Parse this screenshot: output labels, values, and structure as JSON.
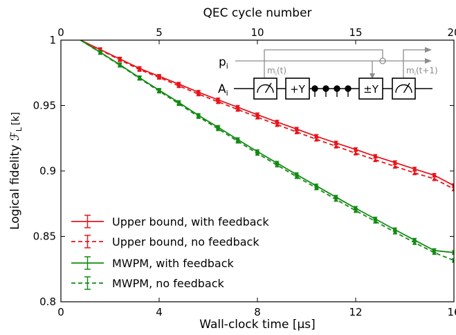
{
  "chart_data": {
    "type": "line",
    "xlabel": "Wall-clock time [μs]",
    "ylabel_text": "Logical fidelity",
    "ylabel_symbol": "ℱ",
    "ylabel_sub": "L",
    "ylabel_arg": "[k]",
    "top_xlabel": "QEC cycle number",
    "xlim": [
      0,
      16
    ],
    "ylim": [
      0.8,
      1.0
    ],
    "xticks": [
      0,
      4,
      8,
      12,
      16
    ],
    "yticks": [
      0.8,
      0.85,
      0.9,
      0.95,
      1.0
    ],
    "ytick_labels": [
      "0.8",
      "0.85",
      "0.9",
      "0.95",
      "1"
    ],
    "top_xlim": [
      0,
      20
    ],
    "top_xticks": [
      0,
      5,
      10,
      15,
      20
    ],
    "legend_position": "lower-left",
    "grid": false,
    "colors": {
      "red": "#e8141b",
      "green": "#138a13"
    },
    "x": [
      0.8,
      1.6,
      2.4,
      3.2,
      4.0,
      4.8,
      5.6,
      6.4,
      7.2,
      8.0,
      8.8,
      9.6,
      10.4,
      11.2,
      12.0,
      12.8,
      13.6,
      14.4,
      15.2,
      16.0
    ],
    "series": [
      {
        "name": "Upper bound, with feedback",
        "color": "#e8141b",
        "style": "solid",
        "marker": "dot",
        "values": [
          1.0,
          0.9928,
          0.9856,
          0.9784,
          0.9724,
          0.9664,
          0.9602,
          0.9544,
          0.9487,
          0.943,
          0.9374,
          0.932,
          0.9265,
          0.9214,
          0.9164,
          0.9112,
          0.9064,
          0.9015,
          0.8967,
          0.8888
        ]
      },
      {
        "name": "Upper bound, no feedback",
        "color": "#e8141b",
        "style": "dashed",
        "marker": "triangle",
        "values": [
          1.0,
          0.9924,
          0.985,
          0.9775,
          0.9715,
          0.9651,
          0.9588,
          0.9529,
          0.947,
          0.9411,
          0.9354,
          0.9298,
          0.9242,
          0.9189,
          0.9136,
          0.9085,
          0.9035,
          0.8985,
          0.894,
          0.8862
        ]
      },
      {
        "name": "MWPM, with feedback",
        "color": "#138a13",
        "style": "solid",
        "marker": "dot",
        "values": [
          1.0,
          0.9908,
          0.9812,
          0.9713,
          0.9617,
          0.9524,
          0.9425,
          0.9334,
          0.924,
          0.9148,
          0.906,
          0.8972,
          0.8886,
          0.88,
          0.8715,
          0.8633,
          0.8551,
          0.8471,
          0.8392,
          0.8376
        ]
      },
      {
        "name": "MWPM, no feedback",
        "color": "#138a13",
        "style": "dashed",
        "marker": "triangle",
        "values": [
          1.0,
          0.9905,
          0.9808,
          0.9708,
          0.961,
          0.9514,
          0.9415,
          0.9322,
          0.9227,
          0.9134,
          0.9045,
          0.8956,
          0.887,
          0.8782,
          0.8697,
          0.8615,
          0.8532,
          0.8452,
          0.8376,
          0.8316
        ]
      }
    ],
    "inset": {
      "p_main": "p",
      "p_sub": "i",
      "a_main": "A",
      "a_sub": "i",
      "m1_main": "m",
      "m1_sub": "i",
      "m1_arg": "(t)",
      "m2_main": "m",
      "m2_sub": "i",
      "m2_arg": "(t+1)",
      "gate1": "+Y",
      "gate2": "±Y"
    }
  }
}
